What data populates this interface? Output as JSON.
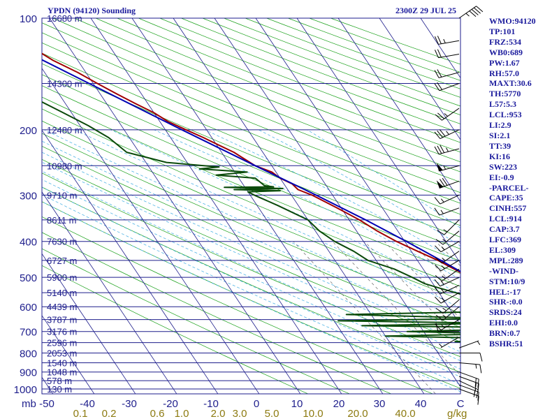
{
  "header": {
    "station": "YPDN (94120) Sounding",
    "time": "2300Z 29 JUL 25"
  },
  "indices": [
    "WMO:94120",
    "TP:101",
    "FRZ:534",
    "WB0:689",
    "PW:1.67",
    "RH:57.0",
    "MAXT:30.6",
    "TH:5770",
    "L57:5.3",
    "LCL:953",
    "LI:2.9",
    "SI:2.1",
    "TT:39",
    "KI:16",
    "SW:223",
    "EI:-0.9",
    "-PARCEL-",
    "CAPE:35",
    "CINH:557",
    "LCL:914",
    "CAP:3.7",
    "LFC:369",
    "EL:309",
    "MPL:289",
    "-WIND-",
    "STM:10/9",
    "HEL:-17",
    "SHR-:0.0",
    "SRDS:24",
    "EHI:0.0",
    "BRN:0.7",
    "BSHR:51"
  ],
  "colors": {
    "isobar": "#1e1e8c",
    "isotherm": "#1e1e8c",
    "dry_adiabat": "#19a019",
    "moist_adiabat": "#50b4e6",
    "mixing_ratio": "#666666",
    "temperature": "#a00000",
    "dewpoint": "#0a4a0a",
    "parcel": "#0000b4",
    "axis_text": "#1e1e8c",
    "mixing_text": "#8c7a10"
  },
  "chart_data": {
    "type": "line",
    "title": "",
    "xlabel": "",
    "ylabel": "",
    "unit_pressure": "mb",
    "unit_mixing": "g/kg",
    "pressure_levels": [
      100,
      200,
      300,
      400,
      500,
      600,
      700,
      800,
      900,
      1000
    ],
    "pressure_labels": [
      "100",
      "200",
      "300",
      "400",
      "500",
      "600",
      "700",
      "800",
      "900",
      "1000"
    ],
    "temperature_ticks": [
      -50,
      -40,
      -30,
      -20,
      -10,
      0,
      10,
      20,
      30,
      40
    ],
    "temperature_labels": [
      "-50",
      "-40",
      "-30",
      "-20",
      "-10",
      "0",
      "10",
      "20",
      "30",
      "40",
      "C"
    ],
    "mixing_ratio_values": [
      0.1,
      0.2,
      0.6,
      1.0,
      2.0,
      3.0,
      5.0,
      10.0,
      20.0,
      40.0
    ],
    "mixing_ratio_labels": [
      "0.1",
      "0.2",
      "0.6",
      "1.0",
      "2.0",
      "3.0",
      "5.0",
      "10.0",
      "20.0",
      "40.0"
    ],
    "heights": [
      {
        "p": 100,
        "label": "16680 m"
      },
      {
        "p": 150,
        "label": "14300 m"
      },
      {
        "p": 200,
        "label": "12480 m"
      },
      {
        "p": 250,
        "label": "10980 m"
      },
      {
        "p": 300,
        "label": "9710 m"
      },
      {
        "p": 350,
        "label": "8611 m"
      },
      {
        "p": 400,
        "label": "7630 m"
      },
      {
        "p": 450,
        "label": "6727 m"
      },
      {
        "p": 500,
        "label": "5900 m"
      },
      {
        "p": 550,
        "label": "5140 m"
      },
      {
        "p": 600,
        "label": "4439 m"
      },
      {
        "p": 650,
        "label": "3787 m"
      },
      {
        "p": 700,
        "label": "3176 m"
      },
      {
        "p": 750,
        "label": "2596 m"
      },
      {
        "p": 800,
        "label": "2053 m"
      },
      {
        "p": 850,
        "label": "1540 m"
      },
      {
        "p": 900,
        "label": "1048 m"
      },
      {
        "p": 950,
        "label": "578 m"
      },
      {
        "p": 1000,
        "label": "130 m"
      }
    ],
    "series": [
      {
        "name": "Temperature",
        "points": [
          [
            1010,
            26.5
          ],
          [
            1000,
            24.5
          ],
          [
            970,
            21.5
          ],
          [
            950,
            22
          ],
          [
            925,
            23.5
          ],
          [
            900,
            22
          ],
          [
            875,
            21
          ],
          [
            850,
            20.5
          ],
          [
            825,
            20
          ],
          [
            800,
            18.5
          ],
          [
            775,
            19
          ],
          [
            750,
            17.5
          ],
          [
            725,
            16.5
          ],
          [
            700,
            14.5
          ],
          [
            675,
            12.5
          ],
          [
            650,
            10.5
          ],
          [
            625,
            10
          ],
          [
            600,
            8
          ],
          [
            575,
            6
          ],
          [
            550,
            4.5
          ],
          [
            525,
            2.5
          ],
          [
            500,
            0
          ],
          [
            475,
            -2.5
          ],
          [
            450,
            -5
          ],
          [
            425,
            -8.5
          ],
          [
            400,
            -12
          ],
          [
            375,
            -15
          ],
          [
            350,
            -17.5
          ],
          [
            325,
            -21
          ],
          [
            300,
            -25
          ],
          [
            290,
            -27.5
          ],
          [
            280,
            -28
          ],
          [
            270,
            -30
          ],
          [
            260,
            -31
          ],
          [
            250,
            -34
          ],
          [
            240,
            -35.5
          ],
          [
            230,
            -37
          ],
          [
            220,
            -39.5
          ],
          [
            210,
            -42
          ],
          [
            200,
            -45
          ],
          [
            190,
            -48
          ],
          [
            180,
            -50
          ],
          [
            170,
            -53
          ],
          [
            160,
            -56
          ],
          [
            150,
            -59
          ],
          [
            140,
            -62
          ],
          [
            130,
            -66
          ],
          [
            120,
            -69
          ],
          [
            110,
            -72
          ],
          [
            100,
            -73
          ]
        ]
      },
      {
        "name": "Dewpoint",
        "points": [
          [
            1010,
            20.5
          ],
          [
            1000,
            20.5
          ],
          [
            975,
            20
          ],
          [
            950,
            20
          ],
          [
            925,
            21.5
          ],
          [
            920,
            18
          ],
          [
            900,
            17.5
          ],
          [
            875,
            15.5
          ],
          [
            850,
            17
          ],
          [
            825,
            16
          ],
          [
            800,
            14.5
          ],
          [
            790,
            13
          ],
          [
            780,
            6
          ],
          [
            770,
            -12
          ],
          [
            760,
            12
          ],
          [
            745,
            -14
          ],
          [
            735,
            8
          ],
          [
            720,
            -30
          ],
          [
            710,
            -2
          ],
          [
            700,
            -24
          ],
          [
            685,
            10
          ],
          [
            675,
            -34
          ],
          [
            665,
            -2
          ],
          [
            655,
            -39
          ],
          [
            645,
            -2
          ],
          [
            630,
            -36
          ],
          [
            618,
            0
          ],
          [
            600,
            -6
          ],
          [
            590,
            2
          ],
          [
            575,
            0
          ],
          [
            555,
            -5
          ],
          [
            535,
            -9
          ],
          [
            520,
            -12
          ],
          [
            500,
            -14
          ],
          [
            475,
            -17
          ],
          [
            450,
            -22
          ],
          [
            425,
            -24
          ],
          [
            400,
            -27
          ],
          [
            375,
            -29
          ],
          [
            350,
            -30
          ],
          [
            320,
            -35
          ],
          [
            300,
            -39
          ],
          [
            294,
            -40
          ],
          [
            292,
            -32
          ],
          [
            290,
            -43
          ],
          [
            288,
            -31
          ],
          [
            286,
            -45
          ],
          [
            285,
            -33
          ],
          [
            283,
            -35
          ],
          [
            270,
            -36
          ],
          [
            265,
            -45
          ],
          [
            260,
            -37
          ],
          [
            255,
            -48
          ],
          [
            252,
            -43
          ],
          [
            245,
            -55
          ],
          [
            230,
            -63
          ],
          [
            210,
            -65
          ],
          [
            195,
            -68
          ],
          [
            180,
            -72
          ],
          [
            160,
            -78
          ],
          [
            140,
            -80
          ],
          [
            120,
            -78
          ],
          [
            110,
            -82
          ],
          [
            100,
            -85
          ]
        ]
      },
      {
        "name": "Parcel",
        "points": [
          [
            1010,
            26.5
          ],
          [
            953,
            21.5
          ],
          [
            925,
            21.2
          ],
          [
            900,
            20.6
          ],
          [
            850,
            19
          ],
          [
            800,
            17.2
          ],
          [
            750,
            15.2
          ],
          [
            700,
            12.9
          ],
          [
            650,
            10.3
          ],
          [
            600,
            7.3
          ],
          [
            550,
            4
          ],
          [
            500,
            0.2
          ],
          [
            450,
            -4.3
          ],
          [
            400,
            -9.6
          ],
          [
            350,
            -16
          ],
          [
            300,
            -24
          ],
          [
            250,
            -34
          ],
          [
            200,
            -46
          ],
          [
            150,
            -61
          ],
          [
            100,
            -82
          ]
        ]
      }
    ],
    "wind_barbs": [
      {
        "p": 1000,
        "dir": 110,
        "speed": 10
      },
      {
        "p": 975,
        "dir": 110,
        "speed": 15
      },
      {
        "p": 950,
        "dir": 115,
        "speed": 20
      },
      {
        "p": 925,
        "dir": 110,
        "speed": 20
      },
      {
        "p": 900,
        "dir": 110,
        "speed": 20
      },
      {
        "p": 850,
        "dir": 95,
        "speed": 15
      },
      {
        "p": 800,
        "dir": 90,
        "speed": 10
      },
      {
        "p": 775,
        "dir": 70,
        "speed": 5
      },
      {
        "p": 725,
        "dir": 240,
        "speed": 5
      },
      {
        "p": 700,
        "dir": 270,
        "speed": 10
      },
      {
        "p": 650,
        "dir": 240,
        "speed": 15
      },
      {
        "p": 600,
        "dir": 230,
        "speed": 15
      },
      {
        "p": 575,
        "dir": 230,
        "speed": 15
      },
      {
        "p": 550,
        "dir": 240,
        "speed": 15
      },
      {
        "p": 525,
        "dir": 245,
        "speed": 15
      },
      {
        "p": 500,
        "dir": 245,
        "speed": 15
      },
      {
        "p": 475,
        "dir": 235,
        "speed": 15
      },
      {
        "p": 450,
        "dir": 240,
        "speed": 15
      },
      {
        "p": 425,
        "dir": 235,
        "speed": 15
      },
      {
        "p": 400,
        "dir": 240,
        "speed": 15
      },
      {
        "p": 375,
        "dir": 230,
        "speed": 15
      },
      {
        "p": 350,
        "dir": 225,
        "speed": 15
      },
      {
        "p": 325,
        "dir": 250,
        "speed": 15
      },
      {
        "p": 300,
        "dir": 245,
        "speed": 15
      },
      {
        "p": 275,
        "dir": 250,
        "speed": 70
      },
      {
        "p": 250,
        "dir": 255,
        "speed": 55
      },
      {
        "p": 225,
        "dir": 255,
        "speed": 35
      },
      {
        "p": 200,
        "dir": 245,
        "speed": 35
      },
      {
        "p": 175,
        "dir": 235,
        "speed": 25
      },
      {
        "p": 150,
        "dir": 250,
        "speed": 20
      },
      {
        "p": 140,
        "dir": 255,
        "speed": 20
      },
      {
        "p": 125,
        "dir": 260,
        "speed": 20
      },
      {
        "p": 115,
        "dir": 260,
        "speed": 25
      },
      {
        "p": 100,
        "dir": 55,
        "speed": 45
      }
    ]
  }
}
